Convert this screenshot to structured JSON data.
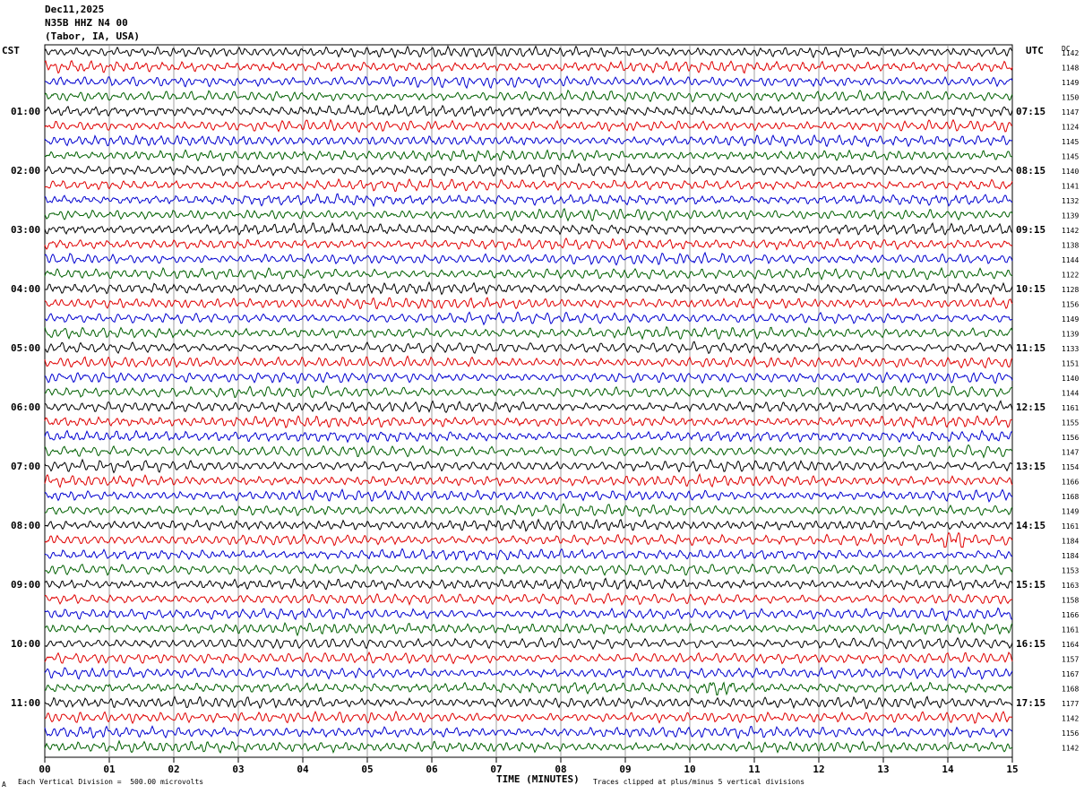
{
  "header": {
    "date": "Dec11,2025",
    "station": "N35B HHZ N4 00",
    "location": "(Tabor, IA, USA)"
  },
  "left_tz": "CST",
  "right_tz": "UTC",
  "dc_label": "DC",
  "footer": {
    "scale_note": "Each Vertical Division =  500.00 microvolts",
    "clip_note": "Traces clipped at plus/minus 5 vertical divisions",
    "marker": "A"
  },
  "colors": {
    "trace_cycle": [
      "#000000",
      "#e00000",
      "#0000d0",
      "#006000"
    ],
    "grid": "#888888"
  },
  "chart_data": {
    "type": "line",
    "title": "Dec11,2025 N35B HHZ N4 00 (Tabor, IA, USA)",
    "xlabel": "TIME (MINUTES)",
    "xlim": [
      0,
      15
    ],
    "x_ticks": [
      "00",
      "01",
      "02",
      "03",
      "04",
      "05",
      "06",
      "07",
      "08",
      "09",
      "10",
      "11",
      "12",
      "13",
      "14",
      "15"
    ],
    "left_hour_labels": [
      "01:00",
      "02:00",
      "03:00",
      "04:00",
      "05:00",
      "06:00",
      "07:00",
      "08:00",
      "09:00",
      "10:00",
      "11:00"
    ],
    "right_hour_labels": [
      "07:15",
      "08:15",
      "09:15",
      "10:15",
      "11:15",
      "12:15",
      "13:15",
      "14:15",
      "15:15",
      "16:15",
      "17:15"
    ],
    "rows_per_hour": 4,
    "dc_offsets": [
      1142,
      1148,
      1149,
      1150,
      1147,
      1124,
      1145,
      1145,
      1140,
      1141,
      1132,
      1139,
      1142,
      1138,
      1144,
      1122,
      1128,
      1156,
      1149,
      1139,
      1133,
      1151,
      1140,
      1144,
      1161,
      1155,
      1156,
      1147,
      1154,
      1166,
      1168,
      1149,
      1161,
      1184,
      1184,
      1153,
      1163,
      1158,
      1166,
      1161,
      1164,
      1157,
      1167,
      1168,
      1177,
      1142,
      1156,
      1142
    ],
    "events": [
      {
        "row": 33,
        "minute": 14.1
      },
      {
        "row": 43,
        "minute": 10.45
      }
    ]
  }
}
